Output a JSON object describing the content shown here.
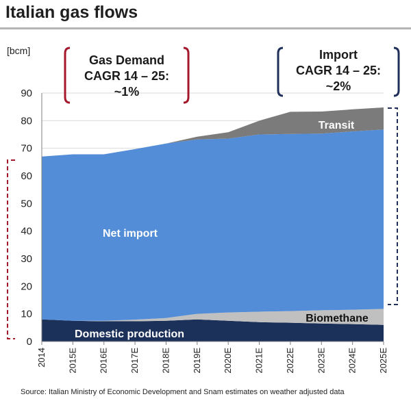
{
  "page": {
    "title": "Italian gas flows",
    "source": "Source: Italian Ministry of Economic Development and Snam estimates on weather adjusted data"
  },
  "annotations": {
    "demand": {
      "line1": "Gas Demand",
      "line2": "CAGR 14 – 25:",
      "line3": "~1%",
      "color": "#a5172b"
    },
    "import": {
      "line1": "Import",
      "line2": "CAGR 14 – 25:",
      "line3": "~2%",
      "color": "#1f2f5a"
    }
  },
  "chart_data": {
    "type": "area",
    "stacked": true,
    "ylabel": "[bcm]",
    "ylim": [
      0,
      90
    ],
    "yticks": [
      0,
      10,
      20,
      30,
      40,
      50,
      60,
      70,
      80,
      90
    ],
    "categories": [
      "2014",
      "2015E",
      "2016E",
      "2017E",
      "2018E",
      "2019E",
      "2020E",
      "2021E",
      "2022E",
      "2023E",
      "2024E",
      "2025E"
    ],
    "series": [
      {
        "name": "Domestic production",
        "color": "#1c3159",
        "values": [
          8.0,
          7.5,
          7.3,
          7.3,
          7.5,
          8.0,
          7.5,
          7.0,
          6.8,
          6.5,
          6.3,
          6.0
        ]
      },
      {
        "name": "Biomethane",
        "color": "#c0c0c0",
        "values": [
          0.0,
          0.0,
          0.2,
          0.6,
          1.0,
          2.0,
          3.0,
          3.8,
          4.2,
          4.8,
          5.2,
          5.8
        ]
      },
      {
        "name": "Net import",
        "color": "#538cd7",
        "values": [
          59.0,
          60.3,
          60.3,
          61.8,
          63.2,
          63.2,
          63.0,
          64.2,
          64.2,
          64.0,
          64.6,
          65.0
        ]
      },
      {
        "name": "Transit",
        "color": "#7b7b7b",
        "values": [
          0.0,
          0.0,
          0.0,
          0.0,
          0.0,
          1.0,
          2.3,
          5.0,
          8.0,
          8.0,
          8.0,
          8.0
        ]
      }
    ]
  }
}
